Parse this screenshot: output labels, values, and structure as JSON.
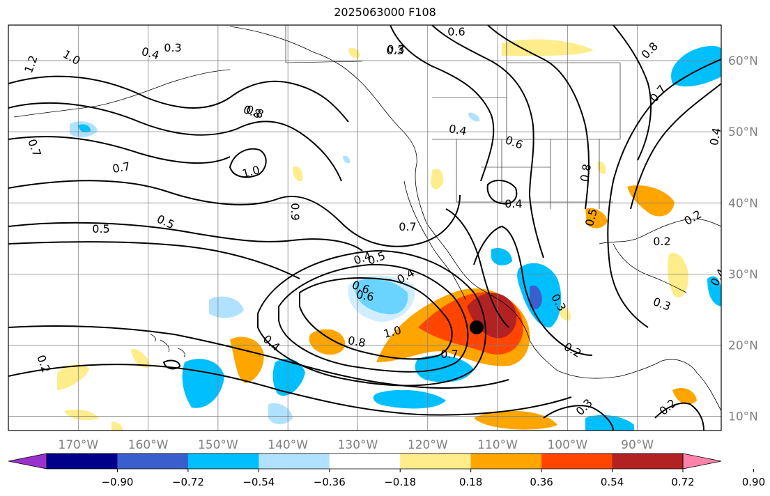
{
  "title": "2025063000 F108",
  "map": {
    "lon_range": [
      -180,
      -78
    ],
    "lat_range": [
      8,
      65
    ],
    "lon_ticks": [
      "170°W",
      "160°W",
      "150°W",
      "140°W",
      "130°W",
      "120°W",
      "110°W",
      "100°W",
      "90°W"
    ],
    "lat_ticks": [
      "60°N",
      "50°N",
      "40°N",
      "30°N",
      "20°N",
      "10°N"
    ],
    "grid": true,
    "contour_color": "#000000",
    "contour_labels": [
      "1.2",
      "1.0",
      "0.4",
      "0.3",
      "0.8",
      "0.7",
      "0.7",
      "1.0",
      "0.5",
      "0.5",
      "0.9",
      "0.6",
      "0.4",
      "0.3",
      "0.5",
      "0.4",
      "0.6",
      "0.8",
      "1.0",
      "0.8",
      "0.7",
      "0.4",
      "0.2",
      "0.6",
      "0.3",
      "0.4",
      "0.6",
      "0.8",
      "0.4",
      "0.5",
      "0.3",
      "0.2",
      "0.2",
      "0.7",
      "0.8",
      "0.4",
      "0.3",
      "0.4",
      "0.2",
      "0.7",
      "0.3",
      "0.2"
    ],
    "storm_marker": {
      "lon": -113,
      "lat": 22.5,
      "color": "#000000"
    }
  },
  "colorbar": {
    "ticks": [
      "−0.90",
      "−0.72",
      "−0.54",
      "−0.36",
      "−0.18",
      "0.18",
      "0.36",
      "0.54",
      "0.72",
      "0.90"
    ],
    "colors": [
      "#9932cc",
      "#00008b",
      "#3a5fcd",
      "#00bfff",
      "#b0e2ff",
      "#ffffff",
      "#ffec8b",
      "#ffa500",
      "#ff4500",
      "#b22222",
      "#ff82ab"
    ]
  }
}
